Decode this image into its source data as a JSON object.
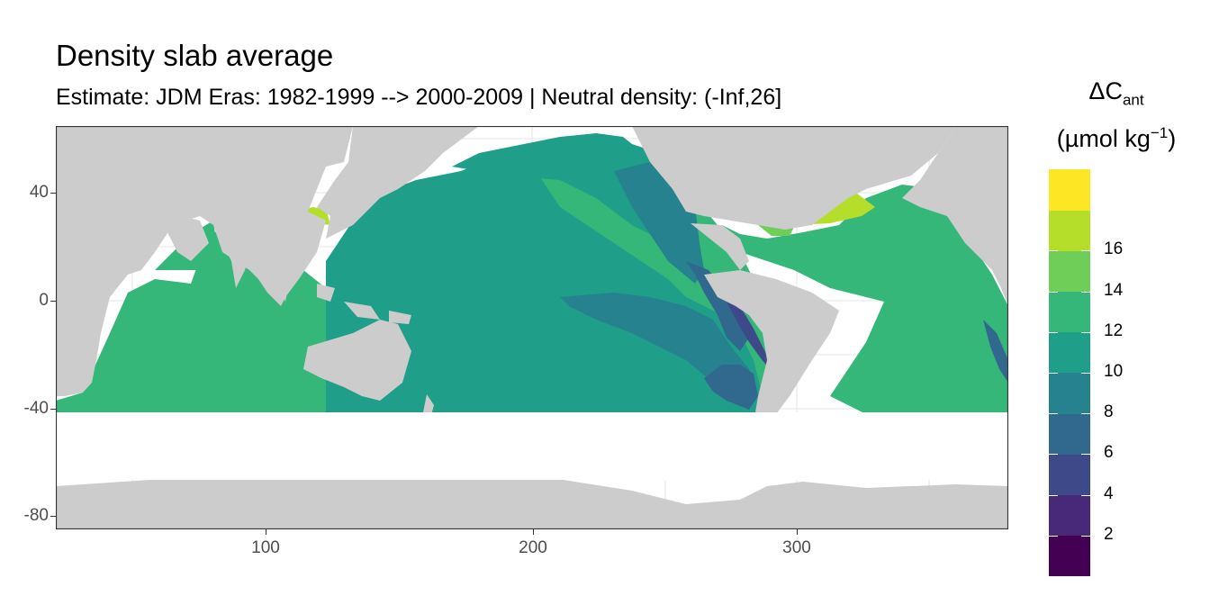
{
  "title": "Density slab average",
  "subtitle": "Estimate: JDM Eras: 1982-1999 --> 2000-2009 | Neutral density: (-Inf,26]",
  "legend": {
    "title_main": "ΔC",
    "title_sub": "ant",
    "unit_prefix": "(µmol kg",
    "unit_sup": "−1",
    "unit_suffix": ")",
    "bins": [
      {
        "color": "#440154"
      },
      {
        "color": "#482878"
      },
      {
        "color": "#3e4989"
      },
      {
        "color": "#31688e"
      },
      {
        "color": "#26828e"
      },
      {
        "color": "#1f9e89"
      },
      {
        "color": "#35b779"
      },
      {
        "color": "#6ece58"
      },
      {
        "color": "#b5de2b"
      },
      {
        "color": "#fde725"
      }
    ],
    "labels": [
      "2",
      "4",
      "6",
      "8",
      "10",
      "12",
      "14",
      "16"
    ]
  },
  "axes": {
    "x_ticks": [
      "100",
      "200",
      "300"
    ],
    "y_ticks": [
      "40",
      "0",
      "-40",
      "-80"
    ]
  },
  "colors": {
    "land": "#cccccc",
    "nodata": "#ffffff",
    "grid": "#ebebeb",
    "panel_border": "#333333"
  },
  "chart_data": {
    "type": "heatmap",
    "title": "Density slab average",
    "subtitle": "Estimate: JDM Eras: 1982-1999 --> 2000-2009 | Neutral density: (-Inf,26]",
    "xlabel": "",
    "ylabel": "",
    "xlim": [
      20,
      380
    ],
    "ylim": [
      -85,
      65
    ],
    "x_ticks": [
      100,
      200,
      300
    ],
    "y_ticks": [
      40,
      0,
      -40,
      -80
    ],
    "legend_title": "ΔCant (µmol kg−1)",
    "breaks": [
      2,
      4,
      6,
      8,
      10,
      12,
      14,
      16
    ],
    "legend_position": "right",
    "grid": true
  }
}
